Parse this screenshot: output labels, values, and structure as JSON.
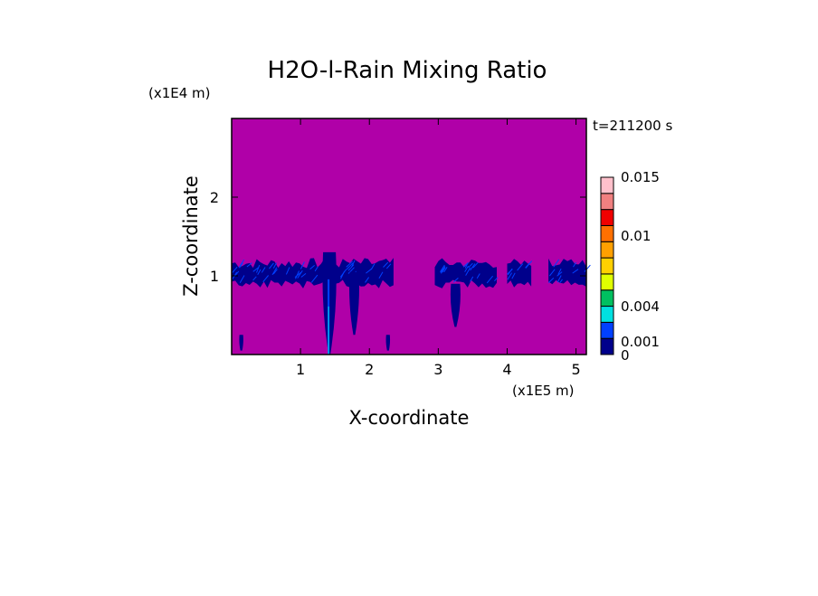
{
  "chart_data": {
    "type": "heatmap",
    "title": "H2O-l-Rain Mixing Ratio",
    "xlabel": "X-coordinate",
    "ylabel": "Z-coordinate",
    "x_scale_label": "(x1E5 m)",
    "y_scale_label": "(x1E4 m)",
    "time_label": "t=211200 s",
    "xlim": [
      0,
      5.15
    ],
    "ylim": [
      0,
      3
    ],
    "x_ticks": [
      1,
      2,
      3,
      4,
      5
    ],
    "y_ticks": [
      1,
      2
    ],
    "background_color": "#b000a8",
    "colorbar": {
      "levels": [
        0,
        0.0005,
        0.001,
        0.002,
        0.003,
        0.004,
        0.006,
        0.008,
        0.01,
        0.012,
        0.0135,
        0.015
      ],
      "colors": [
        "#00008b",
        "#0040ff",
        "#00e0e0",
        "#00c060",
        "#e0ff00",
        "#ffd000",
        "#ffa000",
        "#ff7000",
        "#f00000",
        "#f08080",
        "#ffc0cb"
      ],
      "tick_values": [
        0,
        0.001,
        0.004,
        0.01,
        0.015
      ],
      "tick_labels": [
        "0",
        "0.001",
        "0.004",
        "0.01",
        "0.015"
      ]
    },
    "features": {
      "cloud_layer": [
        {
          "x0": 0.0,
          "x1": 1.35,
          "z": 1.0
        },
        {
          "x0": 1.35,
          "x1": 2.35,
          "z": 1.0
        },
        {
          "x0": 2.95,
          "x1": 3.85,
          "z": 1.0
        },
        {
          "x0": 4.0,
          "x1": 4.35,
          "z": 1.0
        },
        {
          "x0": 4.6,
          "x1": 5.15,
          "z": 1.0
        }
      ],
      "rain_shafts": [
        {
          "x": 1.42,
          "z_top": 1.3,
          "z_bottom": 0.0
        },
        {
          "x": 1.78,
          "z_top": 1.05,
          "z_bottom": 0.25
        },
        {
          "x": 3.25,
          "z_top": 0.9,
          "z_bottom": 0.35
        },
        {
          "x": 2.27,
          "z_top": 0.25,
          "z_bottom": 0.05
        },
        {
          "x": 0.14,
          "z_top": 0.25,
          "z_bottom": 0.05
        }
      ]
    }
  }
}
